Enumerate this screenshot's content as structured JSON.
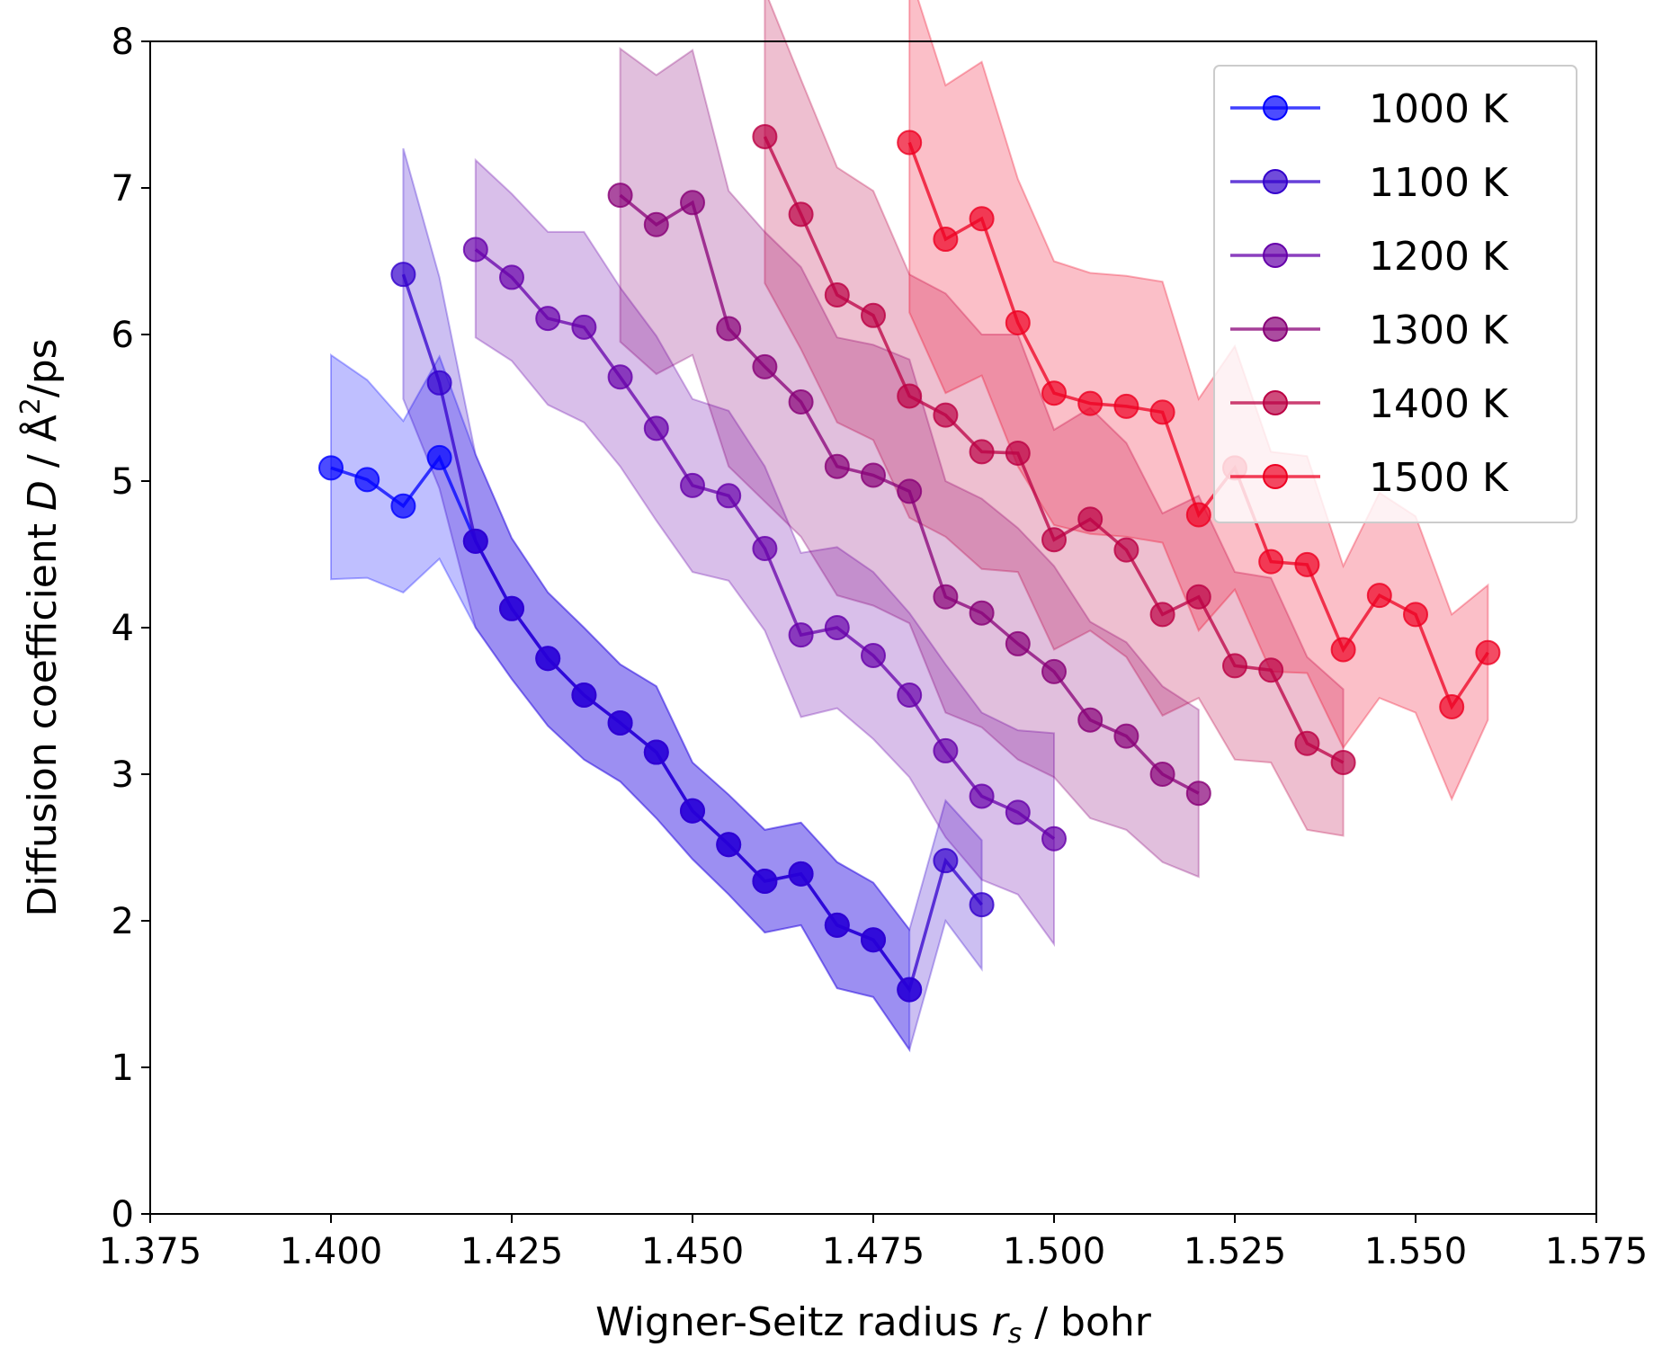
{
  "chart_data": {
    "type": "line",
    "xlabel_parts": {
      "pre": "Wigner-Seitz radius ",
      "sym": "r",
      "sub": "s",
      "post": " / bohr"
    },
    "ylabel_parts": {
      "pre": "Diffusion coefficient ",
      "sym": "D",
      "mid": " / Å",
      "sup": "2",
      "post": "/ps"
    },
    "xlim": [
      1.375,
      1.575
    ],
    "ylim": [
      0,
      8
    ],
    "xticks": [
      "1.375",
      "1.400",
      "1.425",
      "1.450",
      "1.475",
      "1.500",
      "1.525",
      "1.550",
      "1.575"
    ],
    "yticks": [
      "0",
      "1",
      "2",
      "3",
      "4",
      "5",
      "6",
      "7",
      "8"
    ],
    "grid": false,
    "legend_position": "top-right",
    "series": [
      {
        "name": "1000 K",
        "color": "#0000ff",
        "x": [
          1.4,
          1.405,
          1.41,
          1.415,
          1.42,
          1.425,
          1.43,
          1.435,
          1.44,
          1.445,
          1.45,
          1.455,
          1.46,
          1.465,
          1.47,
          1.475,
          1.48
        ],
        "y": [
          5.09,
          5.01,
          4.83,
          5.16,
          4.59,
          4.13,
          3.79,
          3.54,
          3.35,
          3.15,
          2.75,
          2.52,
          2.27,
          2.32,
          1.97,
          1.87,
          1.53
        ],
        "lower": [
          4.33,
          4.34,
          4.24,
          4.47,
          4.0,
          3.65,
          3.33,
          3.1,
          2.95,
          2.7,
          2.42,
          2.18,
          1.92,
          1.97,
          1.54,
          1.48,
          1.12
        ],
        "upper": [
          5.86,
          5.69,
          5.41,
          5.85,
          5.18,
          4.61,
          4.24,
          4.0,
          3.75,
          3.6,
          3.08,
          2.86,
          2.62,
          2.67,
          2.4,
          2.26,
          1.94
        ]
      },
      {
        "name": "1100 K",
        "color": "#3300cc",
        "x": [
          1.41,
          1.415,
          1.42,
          1.425,
          1.43,
          1.435,
          1.44,
          1.445,
          1.45,
          1.455,
          1.46,
          1.465,
          1.47,
          1.475,
          1.48,
          1.485,
          1.49
        ],
        "y": [
          6.41,
          5.67,
          4.59,
          4.13,
          3.79,
          3.54,
          3.35,
          3.15,
          2.75,
          2.52,
          2.27,
          2.32,
          1.97,
          1.87,
          1.53,
          2.41,
          2.11
        ],
        "lower": [
          5.56,
          4.95,
          4.0,
          3.65,
          3.33,
          3.1,
          2.95,
          2.7,
          2.42,
          2.18,
          1.92,
          1.97,
          1.54,
          1.48,
          1.12,
          2.0,
          1.67
        ],
        "upper": [
          7.27,
          6.39,
          5.18,
          4.61,
          4.24,
          4.0,
          3.75,
          3.6,
          3.08,
          2.86,
          2.62,
          2.67,
          2.4,
          2.26,
          1.94,
          2.82,
          2.55
        ]
      },
      {
        "name": "1200 K",
        "color": "#6600aa",
        "x": [
          1.42,
          1.425,
          1.43,
          1.435,
          1.44,
          1.445,
          1.45,
          1.455,
          1.46,
          1.465,
          1.47,
          1.475,
          1.48,
          1.485,
          1.49,
          1.495,
          1.5
        ],
        "y": [
          6.58,
          6.39,
          6.11,
          6.05,
          5.71,
          5.36,
          4.97,
          4.9,
          4.54,
          3.95,
          4.0,
          3.81,
          3.54,
          3.16,
          2.85,
          2.74,
          2.56
        ],
        "lower": [
          5.98,
          5.82,
          5.52,
          5.4,
          5.1,
          4.73,
          4.38,
          4.32,
          3.98,
          3.39,
          3.45,
          3.24,
          2.98,
          2.57,
          2.28,
          2.18,
          1.84
        ],
        "upper": [
          7.19,
          6.96,
          6.7,
          6.7,
          6.32,
          5.99,
          5.56,
          5.48,
          5.1,
          4.51,
          4.55,
          4.38,
          4.1,
          3.75,
          3.42,
          3.3,
          3.28
        ]
      },
      {
        "name": "1300 K",
        "color": "#880077",
        "x": [
          1.44,
          1.445,
          1.45,
          1.455,
          1.46,
          1.465,
          1.47,
          1.475,
          1.48,
          1.485,
          1.49,
          1.495,
          1.5,
          1.505,
          1.51,
          1.515,
          1.52
        ],
        "y": [
          6.95,
          6.75,
          6.9,
          6.04,
          5.78,
          5.54,
          5.1,
          5.04,
          4.93,
          4.21,
          4.1,
          3.89,
          3.7,
          3.37,
          3.26,
          3.0,
          2.87
        ],
        "lower": [
          5.95,
          5.73,
          5.86,
          5.1,
          4.86,
          4.62,
          4.22,
          4.15,
          4.03,
          3.42,
          3.32,
          3.1,
          2.98,
          2.7,
          2.62,
          2.4,
          2.3
        ],
        "upper": [
          7.95,
          7.77,
          7.94,
          6.98,
          6.7,
          6.46,
          5.98,
          5.93,
          5.83,
          5.0,
          4.88,
          4.68,
          4.42,
          4.04,
          3.9,
          3.6,
          3.44
        ]
      },
      {
        "name": "1400 K",
        "color": "#bb0044",
        "x": [
          1.46,
          1.465,
          1.47,
          1.475,
          1.48,
          1.485,
          1.49,
          1.495,
          1.5,
          1.505,
          1.51,
          1.515,
          1.52,
          1.525,
          1.53,
          1.535,
          1.54
        ],
        "y": [
          7.35,
          6.82,
          6.27,
          6.13,
          5.58,
          5.45,
          5.2,
          5.19,
          4.6,
          4.74,
          4.53,
          4.09,
          4.21,
          3.74,
          3.71,
          3.21,
          3.08
        ],
        "lower": [
          6.35,
          5.9,
          5.4,
          5.28,
          4.75,
          4.62,
          4.4,
          4.38,
          3.85,
          3.98,
          3.8,
          3.4,
          3.52,
          3.1,
          3.08,
          2.62,
          2.58
        ],
        "upper": [
          8.35,
          7.74,
          7.14,
          6.98,
          6.41,
          6.28,
          6.0,
          6.0,
          5.35,
          5.5,
          5.26,
          4.78,
          4.9,
          4.38,
          4.34,
          3.8,
          3.58
        ]
      },
      {
        "name": "1500 K",
        "color": "#ee0022",
        "x": [
          1.48,
          1.485,
          1.49,
          1.495,
          1.5,
          1.505,
          1.51,
          1.515,
          1.52,
          1.525,
          1.53,
          1.535,
          1.54,
          1.545,
          1.55,
          1.555,
          1.56
        ],
        "y": [
          7.31,
          6.65,
          6.79,
          6.08,
          5.6,
          5.53,
          5.51,
          5.47,
          4.77,
          5.09,
          4.45,
          4.43,
          3.85,
          4.22,
          4.09,
          3.46,
          3.83
        ],
        "lower": [
          6.15,
          5.6,
          5.72,
          5.1,
          4.7,
          4.64,
          4.62,
          4.58,
          3.98,
          4.26,
          3.7,
          3.69,
          3.18,
          3.52,
          3.42,
          2.83,
          3.37
        ],
        "upper": [
          8.47,
          7.7,
          7.86,
          7.06,
          6.5,
          6.42,
          6.4,
          6.36,
          5.56,
          5.92,
          5.2,
          5.17,
          4.42,
          4.92,
          4.76,
          4.09,
          4.29
        ]
      }
    ]
  }
}
